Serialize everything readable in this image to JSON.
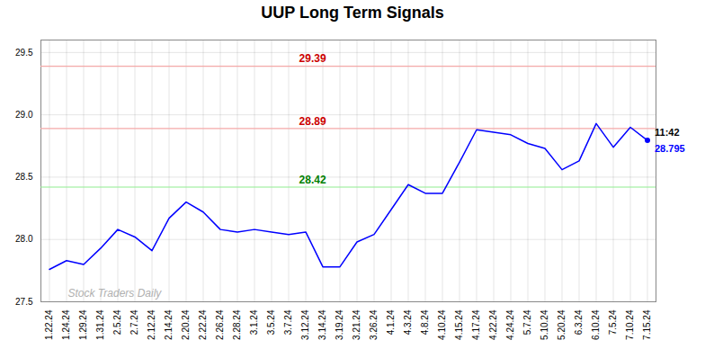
{
  "chart_data": {
    "type": "line",
    "title": "UUP Long Term Signals",
    "categories": [
      "1.22.24",
      "1.24.24",
      "1.29.24",
      "1.31.24",
      "2.5.24",
      "2.7.24",
      "2.12.24",
      "2.14.24",
      "2.20.24",
      "2.22.24",
      "2.26.24",
      "2.28.24",
      "3.1.24",
      "3.5.24",
      "3.7.24",
      "3.12.24",
      "3.14.24",
      "3.19.24",
      "3.21.24",
      "3.26.24",
      "4.1.24",
      "4.3.24",
      "4.8.24",
      "4.10.24",
      "4.15.24",
      "4.17.24",
      "4.22.24",
      "4.24.24",
      "5.7.24",
      "5.10.24",
      "5.20.24",
      "6.3.24",
      "6.10.24",
      "7.5.24",
      "7.10.24",
      "7.15.24"
    ],
    "values": [
      27.76,
      27.83,
      27.8,
      27.93,
      28.08,
      28.02,
      27.91,
      28.17,
      28.3,
      28.22,
      28.08,
      28.06,
      28.08,
      28.06,
      28.04,
      28.06,
      27.78,
      27.78,
      27.98,
      28.04,
      28.24,
      28.44,
      28.37,
      28.37,
      28.62,
      28.88,
      28.86,
      28.84,
      28.77,
      28.73,
      28.56,
      28.63,
      28.93,
      28.74,
      28.9,
      28.795
    ],
    "color": "blue",
    "ylim": [
      27.5,
      29.6
    ],
    "yticks": [
      27.5,
      {
        "value": 28,
        "label": "28.0"
      },
      28.5,
      {
        "value": 29,
        "label": "29.0"
      },
      29.5
    ],
    "grid": true,
    "hlines": [
      {
        "value": 29.39,
        "label": "29.39",
        "color": "#f4a9a8",
        "text_color": "#cc0000"
      },
      {
        "value": 28.89,
        "label": "28.89",
        "color": "#f4a9a8",
        "text_color": "#cc0000"
      },
      {
        "value": 28.42,
        "label": "28.42",
        "color": "#90EE90",
        "text_color": "green"
      }
    ],
    "annotations": [
      {
        "text": "11:42",
        "color": "black"
      },
      {
        "text": "28.795",
        "color": "blue"
      }
    ],
    "watermark": "Stock Traders Daily"
  }
}
